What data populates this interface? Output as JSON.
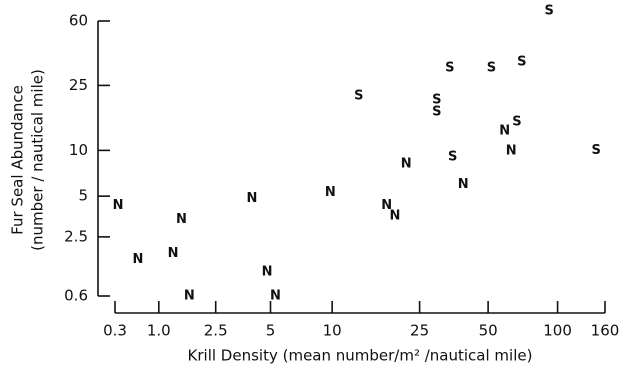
{
  "chart_data": {
    "type": "scatter",
    "xlabel": "Krill Density (mean number/m² /nautical mile)",
    "ylabel": [
      "Fur Seal Abundance",
      "(number / nautical mile)"
    ],
    "xscale": "log1p",
    "yscale": "log1p",
    "xlim": [
      0.3,
      160
    ],
    "ylim": [
      0.6,
      60
    ],
    "xticks": [
      0.3,
      {
        "value": 1,
        "label": "1.0"
      },
      2.5,
      5,
      10,
      25,
      50,
      100,
      160
    ],
    "yticks": [
      0.6,
      2.5,
      5,
      10,
      25,
      60
    ],
    "series": [
      {
        "name": "N",
        "color": "#111111",
        "x": [
          0.34,
          1.5,
          0.63,
          1.3,
          1.7,
          4.0,
          4.8,
          5.3,
          9.8,
          17.8,
          19.4,
          21.8,
          38.9,
          59,
          63
        ],
        "values": [
          4.3,
          3.4,
          1.6,
          1.8,
          0.6,
          4.8,
          1.2,
          0.6,
          5.3,
          4.3,
          3.6,
          8.2,
          6.0,
          13.2,
          9.9
        ]
      },
      {
        "name": "S",
        "color": "#111111",
        "x": [
          13.3,
          29.8,
          29.8,
          34,
          35,
          51.7,
          70,
          66.7,
          92,
          146.6
        ],
        "values": [
          21.6,
          20.4,
          17.3,
          31.7,
          9.1,
          31.7,
          34.4,
          15,
          68.5,
          10
        ]
      }
    ]
  }
}
